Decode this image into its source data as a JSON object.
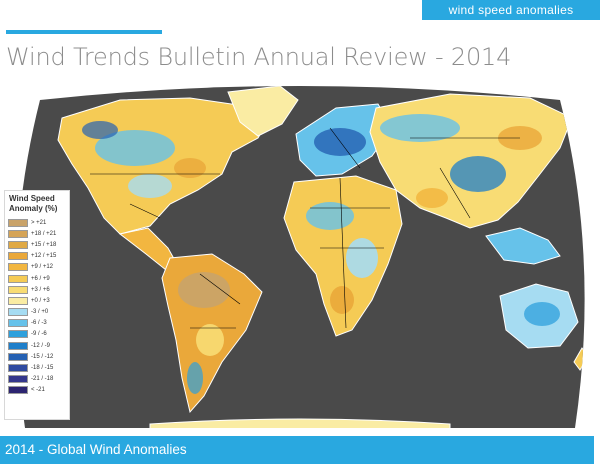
{
  "header": {
    "tag": "wind speed anomalies",
    "title": "Wind Trends Bulletin Annual Review - 2014",
    "accent_color": "#29a8e0"
  },
  "map": {
    "ocean_color": "#4a4a4a",
    "border_color": "#000000",
    "coast_color": "#ffffff"
  },
  "legend": {
    "title_line1": "Wind Speed",
    "title_line2": "Anomaly (%)",
    "items": [
      {
        "label": "> +21",
        "color": "#c9a36a"
      },
      {
        "label": "+18 / +21",
        "color": "#d5a457"
      },
      {
        "label": "+15 / +18",
        "color": "#e0a944"
      },
      {
        "label": "+12 / +15",
        "color": "#eaa83a"
      },
      {
        "label": "+9 / +12",
        "color": "#f2b640"
      },
      {
        "label": "+6 / +9",
        "color": "#f5cb55"
      },
      {
        "label": "+3 / +6",
        "color": "#f8dc74"
      },
      {
        "label": "+0 / +3",
        "color": "#faeca3"
      },
      {
        "label": "-3 / +0",
        "color": "#a6dcf2"
      },
      {
        "label": "-6 / -3",
        "color": "#66c2ea"
      },
      {
        "label": "-9 / -6",
        "color": "#2ea0dc"
      },
      {
        "label": "-12 / -9",
        "color": "#1f7fca"
      },
      {
        "label": "-15 / -12",
        "color": "#2561b3"
      },
      {
        "label": "-18 / -15",
        "color": "#2f4aa0"
      },
      {
        "label": "-21 / -18",
        "color": "#34378c"
      },
      {
        "label": "< -21",
        "color": "#2c2470"
      }
    ]
  },
  "footer": {
    "caption": "2014 - Global Wind Anomalies"
  }
}
